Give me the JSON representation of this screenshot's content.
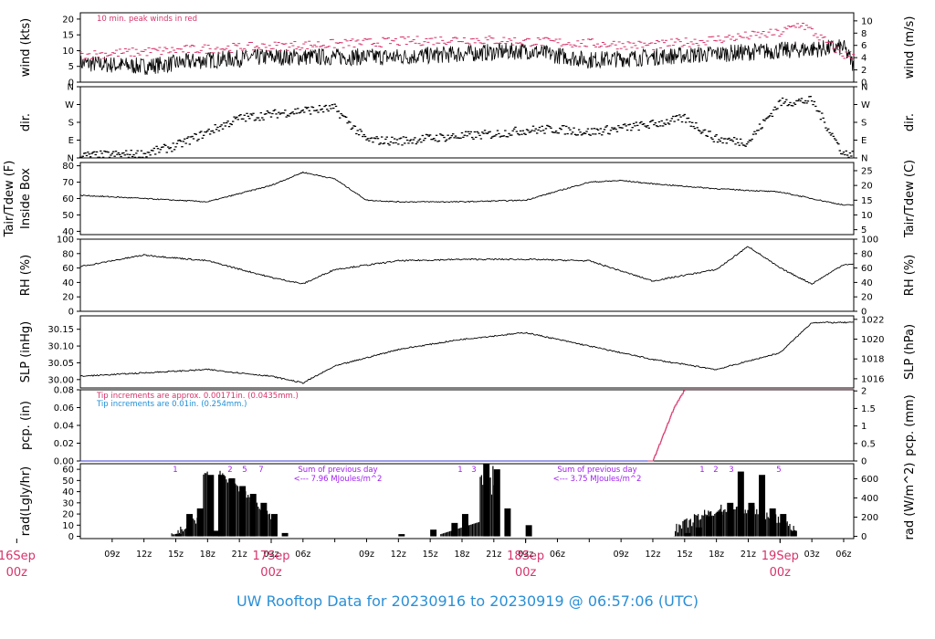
{
  "title": "UW Rooftop Data for 20230916  to  20230919 @ 06:57:06  (UTC)",
  "colors": {
    "data": "#000000",
    "peak": "#d6336c",
    "tip_fine": "#d6336c",
    "tip_coarse": "#1f8fd6",
    "annot": "#a020f0",
    "title": "#2b8fd6",
    "day": "#d6336c"
  },
  "x_axis": {
    "hour_ticks": [
      "09z",
      "12z",
      "15z",
      "18z",
      "21z",
      "03z",
      "06z",
      "09z",
      "12z",
      "15z",
      "18z",
      "21z",
      "03z",
      "06z",
      "09z",
      "12z",
      "15z",
      "18z",
      "21z",
      "03z",
      "06z"
    ],
    "day_labels": [
      {
        "day": "16Sep",
        "hour": "00z"
      },
      {
        "day": "17Sep",
        "hour": "00z"
      },
      {
        "day": "18Sep",
        "hour": "00z"
      },
      {
        "day": "19Sep",
        "hour": "00z"
      }
    ]
  },
  "panels": {
    "wind": {
      "ylabel_left": "wind (kts)",
      "ylabel_right": "wind (m/s)",
      "left_ticks": [
        "0",
        "5",
        "10",
        "15",
        "20"
      ],
      "right_ticks": [
        "0",
        "2",
        "4",
        "6",
        "8",
        "10"
      ],
      "note": "10 min. peak winds in red"
    },
    "dir": {
      "ylabel_left": "dir.",
      "ylabel_right": "dir.",
      "ticks": [
        "N",
        "E",
        "S",
        "W",
        "N"
      ]
    },
    "temp": {
      "ylabel_left_1": "Tair/Tdew (F)",
      "ylabel_left_2": "Inside Box",
      "ylabel_right": "Tair/Tdew (C)",
      "left_ticks": [
        "40",
        "50",
        "60",
        "70",
        "80"
      ],
      "right_ticks": [
        "5",
        "10",
        "15",
        "20",
        "25"
      ]
    },
    "rh": {
      "ylabel_left": "RH (%)",
      "ylabel_right": "RH (%)",
      "ticks": [
        "0",
        "20",
        "40",
        "60",
        "80",
        "100"
      ]
    },
    "slp": {
      "ylabel_left": "SLP (inHg)",
      "ylabel_right": "SLP (hPa)",
      "left_ticks": [
        "30.00",
        "30.05",
        "30.10",
        "30.15"
      ],
      "right_ticks": [
        "1016",
        "1018",
        "1020",
        "1022"
      ]
    },
    "pcp": {
      "ylabel_left": "pcp. (in)",
      "ylabel_right": "pcp. (mm)",
      "left_ticks": [
        "0.00",
        "0.02",
        "0.04",
        "0.06",
        "0.08"
      ],
      "right_ticks": [
        "0",
        "0.5",
        "1",
        "1.5",
        "2"
      ],
      "note_fine": "Tip increments are approx. 0.00171in. (0.0435mm.)",
      "note_coarse": "Tip increments are 0.01in. (0.254mm.)"
    },
    "rad": {
      "ylabel_left": "rad(Lgly/hr)",
      "ylabel_right": "rad (W/m^2)",
      "left_ticks": [
        "0",
        "10",
        "20",
        "30",
        "40",
        "50",
        "60"
      ],
      "right_ticks": [
        "0",
        "200",
        "400",
        "600"
      ],
      "sum_title": "Sum of previous day",
      "sum_day1": "<--- 7.96 MJoules/m^2",
      "sum_day2": "<--- 3.75 MJoules/m^2",
      "peak_labels_1": [
        "1",
        "2",
        "5",
        "7"
      ],
      "peak_labels_2": [
        "1",
        "3"
      ],
      "peak_labels_3": [
        "1",
        "2",
        "3",
        "5"
      ]
    }
  },
  "chart_data": [
    {
      "type": "line",
      "title": "wind (kts)",
      "x_unit": "hours from 2023-09-16 06z",
      "series": [
        {
          "values": [
            [
              0,
              6
            ],
            [
              6,
              5
            ],
            [
              12,
              7
            ],
            [
              18,
              8
            ],
            [
              24,
              8
            ],
            [
              30,
              8
            ],
            [
              36,
              9
            ],
            [
              42,
              10
            ],
            [
              48,
              7
            ],
            [
              54,
              8
            ],
            [
              60,
              9
            ],
            [
              66,
              10
            ],
            [
              72,
              11
            ],
            [
              73,
              5
            ]
          ]
        },
        {
          "name": "10 min. peak winds",
          "values": [
            [
              0,
              8
            ],
            [
              12,
              10
            ],
            [
              36,
              13
            ],
            [
              54,
              11
            ],
            [
              66,
              15
            ],
            [
              68,
              18
            ],
            [
              72,
              8
            ]
          ]
        }
      ],
      "ylim": [
        0,
        22
      ]
    },
    {
      "type": "scatter",
      "title": "dir.",
      "ylim": [
        0,
        360
      ],
      "x": [
        0,
        6,
        9,
        12,
        15,
        18,
        21,
        24,
        27,
        30,
        33,
        36,
        39,
        42,
        45,
        48,
        51,
        54,
        57,
        60,
        63,
        66,
        69,
        72
      ],
      "y": [
        10,
        20,
        60,
        130,
        200,
        220,
        240,
        250,
        90,
        85,
        100,
        110,
        120,
        140,
        145,
        130,
        150,
        170,
        200,
        95,
        80,
        280,
        290,
        20
      ]
    },
    {
      "type": "line",
      "title": "Tair/Tdew (F)",
      "ylim": [
        38,
        82
      ],
      "x": [
        0,
        6,
        12,
        18,
        21,
        24,
        27,
        30,
        36,
        42,
        48,
        51,
        54,
        60,
        66,
        69,
        72
      ],
      "y": [
        62,
        60,
        58,
        68,
        76,
        72,
        59,
        58,
        58,
        59,
        70,
        71,
        69,
        66,
        64,
        60,
        56
      ]
    },
    {
      "type": "line",
      "title": "RH (%)",
      "ylim": [
        0,
        100
      ],
      "x": [
        0,
        6,
        12,
        18,
        21,
        24,
        30,
        36,
        42,
        48,
        54,
        60,
        63,
        66,
        69,
        72
      ],
      "y": [
        62,
        78,
        70,
        47,
        38,
        58,
        70,
        72,
        72,
        70,
        42,
        58,
        90,
        60,
        38,
        65
      ]
    },
    {
      "type": "line",
      "title": "SLP (inHg)",
      "ylim": [
        29.975,
        30.19
      ],
      "x": [
        0,
        6,
        12,
        18,
        21,
        24,
        30,
        36,
        42,
        48,
        54,
        60,
        66,
        69,
        72
      ],
      "y": [
        30.01,
        30.02,
        30.03,
        30.01,
        29.99,
        30.04,
        30.09,
        30.12,
        30.14,
        30.1,
        30.06,
        30.03,
        30.08,
        30.17,
        30.17
      ]
    },
    {
      "type": "line",
      "title": "pcp. (in)",
      "ylim": [
        0,
        0.08
      ],
      "x": [
        0,
        54,
        55,
        56,
        57,
        60,
        72
      ],
      "y": [
        0,
        0,
        0.03,
        0.06,
        0.08,
        0.08,
        0.08
      ]
    },
    {
      "type": "bar",
      "title": "rad(Lgly/hr)",
      "ylim": [
        0,
        65
      ],
      "x": [
        9,
        10,
        11,
        12,
        12.5,
        13,
        14,
        15,
        16,
        17,
        18,
        19,
        30,
        33,
        35,
        36,
        38,
        39,
        40,
        42,
        57,
        58,
        59,
        60,
        61,
        62,
        63,
        64,
        65,
        66,
        67
      ],
      "values": [
        2,
        20,
        25,
        55,
        5,
        55,
        52,
        45,
        38,
        30,
        20,
        3,
        2,
        6,
        12,
        20,
        65,
        60,
        25,
        10,
        3,
        8,
        18,
        22,
        30,
        58,
        30,
        55,
        25,
        20,
        5
      ]
    }
  ]
}
